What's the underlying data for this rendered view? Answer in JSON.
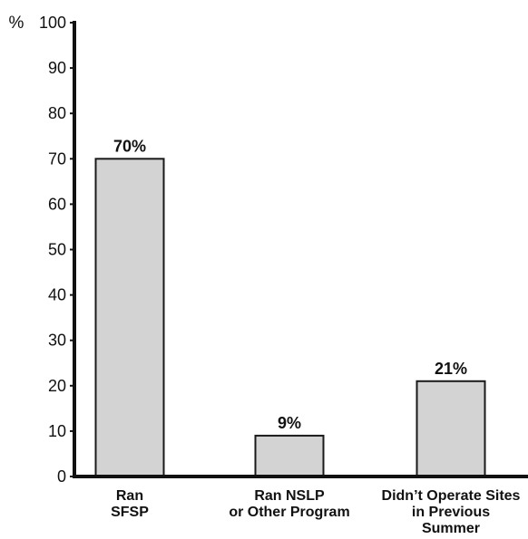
{
  "chart_data": {
    "type": "bar",
    "title": "",
    "xlabel": "",
    "ylabel": "",
    "y_unit_label": "%",
    "categories": [
      [
        "Ran",
        "SFSP"
      ],
      [
        "Ran NSLP",
        "or Other Program"
      ],
      [
        "Didn’t Operate Sites",
        "in Previous",
        "Summer"
      ]
    ],
    "values": [
      70,
      9,
      21
    ],
    "data_labels": [
      "70%",
      "9%",
      "21%"
    ],
    "ylim": [
      0,
      100
    ],
    "yticks": [
      0,
      10,
      20,
      30,
      40,
      50,
      60,
      70,
      80,
      90,
      100
    ],
    "grid": false,
    "legend": "none",
    "colors": {
      "bar_fill": "#d3d3d3",
      "bar_stroke": "#1a1a1a",
      "axis": "#111111"
    }
  }
}
